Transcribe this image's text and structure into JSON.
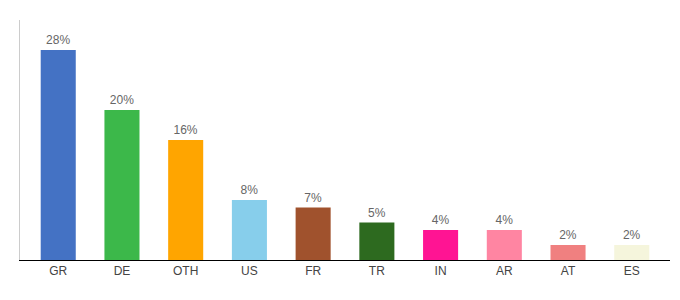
{
  "chart_data": {
    "type": "bar",
    "categories": [
      "GR",
      "DE",
      "OTH",
      "US",
      "FR",
      "TR",
      "IN",
      "AR",
      "AT",
      "ES"
    ],
    "values": [
      28,
      20,
      16,
      8,
      7,
      5,
      4,
      4,
      2,
      2
    ],
    "value_labels": [
      "28%",
      "20%",
      "16%",
      "8%",
      "7%",
      "5%",
      "4%",
      "4%",
      "2%",
      "2%"
    ],
    "colors": [
      "#4472C4",
      "#3CB84A",
      "#FFA500",
      "#87CEEB",
      "#A0522D",
      "#2D6A1F",
      "#FF1493",
      "#FF85A2",
      "#F08080",
      "#F5F5DC"
    ],
    "ylim": [
      0,
      32
    ],
    "grid": false,
    "data_labels": true,
    "tick_labels": "x"
  }
}
